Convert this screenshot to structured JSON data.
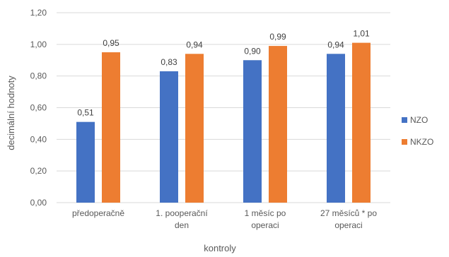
{
  "chart_data": {
    "type": "bar",
    "title": "",
    "xlabel": "kontroly",
    "ylabel": "decimální hodnoty",
    "categories": [
      [
        "předoperačně"
      ],
      [
        "1. pooperační",
        "den"
      ],
      [
        "1 měsíc po",
        "operaci"
      ],
      [
        "27 měsíců * po",
        "operaci"
      ]
    ],
    "series": [
      {
        "name": "NZO",
        "color": "#4472C4",
        "values": [
          0.51,
          0.83,
          0.9,
          0.94
        ],
        "labels": [
          "0,51",
          "0,83",
          "0,90",
          "0,94"
        ]
      },
      {
        "name": "NKZO",
        "color": "#ED7D31",
        "values": [
          0.95,
          0.94,
          0.99,
          1.01
        ],
        "labels": [
          "0,95",
          "0,94",
          "0,99",
          "1,01"
        ]
      }
    ],
    "ylim": [
      0,
      1.2
    ],
    "yticks": [
      0,
      0.2,
      0.4,
      0.6,
      0.8,
      1.0,
      1.2
    ],
    "ytick_labels": [
      "0,00",
      "0,20",
      "0,40",
      "0,60",
      "0,80",
      "1,00",
      "1,20"
    ],
    "grid": true,
    "legend_position": "right",
    "gridline_color": "#D9D9D9"
  }
}
